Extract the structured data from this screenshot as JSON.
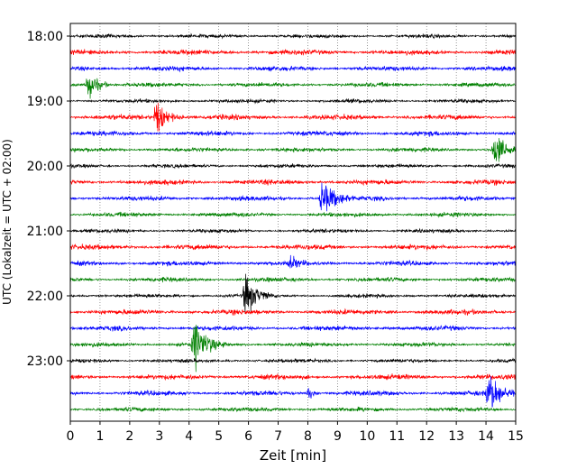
{
  "chart_data": {
    "type": "line",
    "title": "",
    "xlabel": "Zeit  [min]",
    "ylabel": "UTC (Lokalzeit = UTC + 02:00)",
    "xlim": [
      0,
      15
    ],
    "x_ticks": [
      "0",
      "1",
      "2",
      "3",
      "4",
      "5",
      "6",
      "7",
      "8",
      "9",
      "10",
      "11",
      "12",
      "13",
      "14",
      "15"
    ],
    "y_ticks": [
      "18:00",
      "19:00",
      "20:00",
      "21:00",
      "22:00",
      "23:00"
    ],
    "grid": "vertical dotted at each minute",
    "trace_colors": [
      "#000000",
      "#ff0000",
      "#0000ff",
      "#008000"
    ],
    "traces_start": "18:00",
    "trace_interval_min": 15,
    "trace_count": 24,
    "events": [
      {
        "trace_start": "18:45",
        "minute": 0.6,
        "strength": 0.9,
        "width_min": 0.25
      },
      {
        "trace_start": "19:15",
        "minute": 2.9,
        "strength": 0.9,
        "width_min": 0.3
      },
      {
        "trace_start": "19:45",
        "minute": 14.3,
        "strength": 0.9,
        "width_min": 0.3
      },
      {
        "trace_start": "20:30",
        "minute": 8.5,
        "strength": 0.95,
        "width_min": 0.35
      },
      {
        "trace_start": "21:30",
        "minute": 7.4,
        "strength": 0.35,
        "width_min": 0.2
      },
      {
        "trace_start": "22:00",
        "minute": 5.9,
        "strength": 1.1,
        "width_min": 0.3
      },
      {
        "trace_start": "22:45",
        "minute": 4.2,
        "strength": 1.2,
        "width_min": 0.35
      },
      {
        "trace_start": "23:30",
        "minute": 14.1,
        "strength": 1.0,
        "width_min": 0.35
      },
      {
        "trace_start": "23:30",
        "minute": 8.0,
        "strength": 0.45,
        "width_min": 0.12
      }
    ]
  }
}
